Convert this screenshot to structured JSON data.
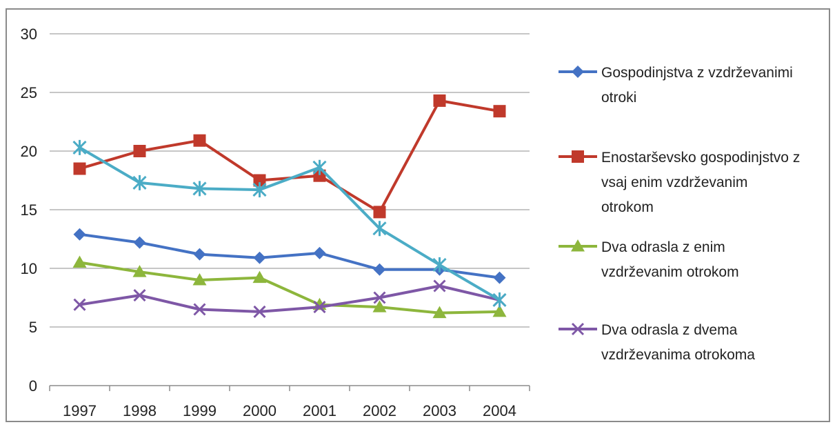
{
  "chart_data": {
    "type": "line",
    "title": "",
    "xlabel": "",
    "ylabel": "",
    "ylim": [
      0,
      30
    ],
    "yticks": [
      "0",
      "5",
      "10",
      "15",
      "20",
      "25",
      "30"
    ],
    "categories": [
      "1997",
      "1998",
      "1999",
      "2000",
      "2001",
      "2002",
      "2003",
      "2004"
    ],
    "grid": "horizontal",
    "legend_position": "right",
    "series": [
      {
        "name": "Gospodinjstva z vzdrževanimi otroki",
        "legend_lines": [
          "Gospodinjstva z vzdrževanimi",
          "otroki"
        ],
        "color": "#4472C4",
        "marker": "diamond",
        "values": [
          12.9,
          12.2,
          11.2,
          10.9,
          11.3,
          9.9,
          9.9,
          9.2
        ]
      },
      {
        "name": "Enostarševsko gospodinjstvo z vsaj enim vzdrževanim otrokom",
        "legend_lines": [
          "Enostarševsko gospodinjstvo z",
          "vsaj enim vzdrževanim",
          "otrokom"
        ],
        "color": "#C0392B",
        "marker": "square",
        "values": [
          18.5,
          20.0,
          20.9,
          17.5,
          17.9,
          14.8,
          24.3,
          23.4
        ]
      },
      {
        "name": "Dva odrasla z enim vzdrževanim otrokom",
        "legend_lines": [
          "Dva odrasla z enim",
          "vzdrževanim otrokom"
        ],
        "color": "#8DB63C",
        "marker": "triangle",
        "values": [
          10.5,
          9.7,
          9.0,
          9.2,
          6.9,
          6.7,
          6.2,
          6.3
        ]
      },
      {
        "name": "Dva odrasla z dvema vzdrževanima otrokoma",
        "legend_lines": [
          "Dva odrasla z dvema",
          "vzdrževanima otrokoma"
        ],
        "color": "#7E57A6",
        "marker": "x",
        "values": [
          6.9,
          7.7,
          6.5,
          6.3,
          6.7,
          7.5,
          8.5,
          7.3
        ]
      },
      {
        "legend_lines": [],
        "color": "#4BACC6",
        "marker": "star",
        "values": [
          20.3,
          17.3,
          16.8,
          16.7,
          18.6,
          13.4,
          10.3,
          7.3
        ]
      }
    ]
  }
}
